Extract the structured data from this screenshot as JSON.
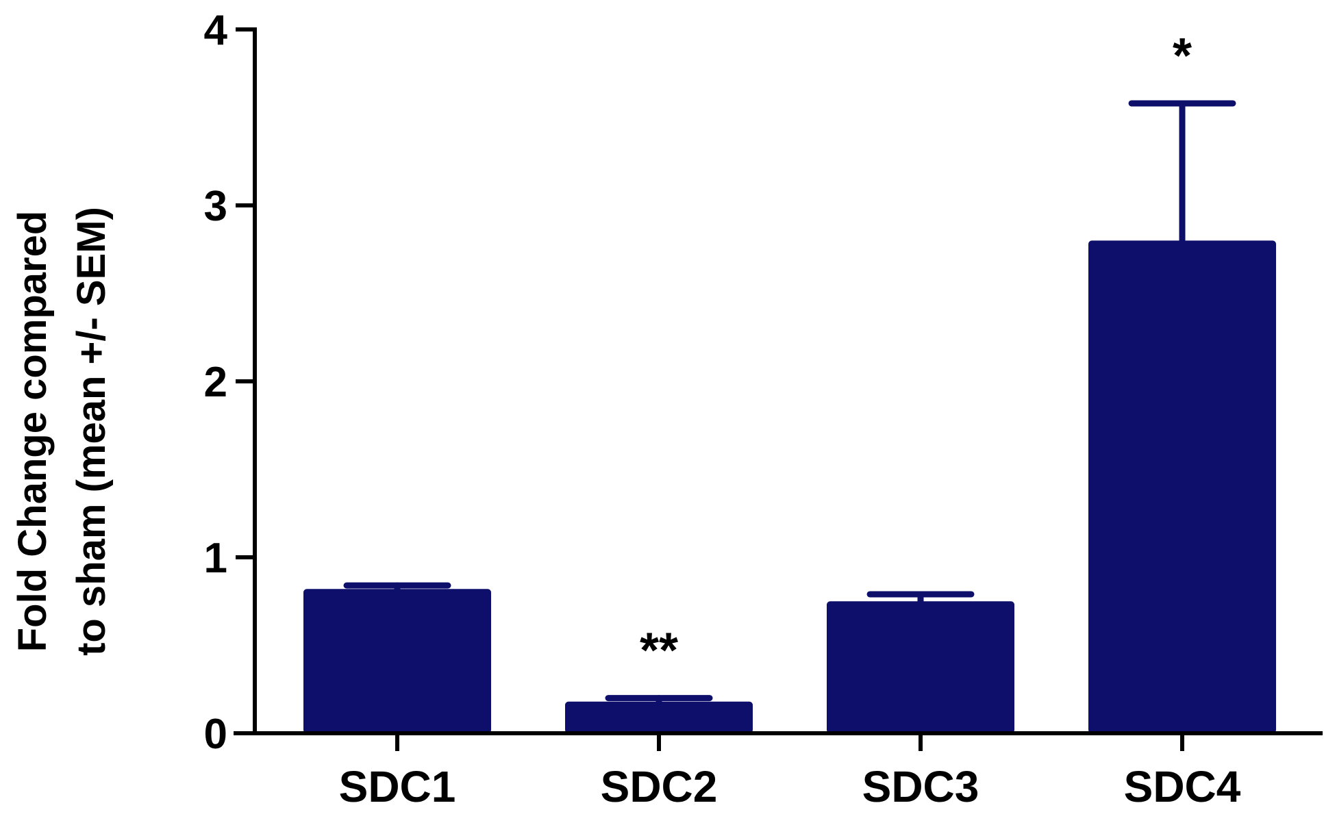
{
  "chart_data": {
    "type": "bar",
    "categories": [
      "SDC1",
      "SDC2",
      "SDC3",
      "SDC4"
    ],
    "values": [
      0.82,
      0.18,
      0.75,
      2.8
    ],
    "error_sem": [
      0.02,
      0.02,
      0.04,
      0.78
    ],
    "annotations": [
      "",
      "**",
      "",
      "*"
    ],
    "title": "",
    "xlabel": "",
    "ylabel_lines": [
      "Fold Change compared",
      "to sham (mean +/- SEM)"
    ],
    "ylim": [
      0,
      4
    ],
    "yticks": [
      "0",
      "1",
      "2",
      "3",
      "4"
    ],
    "grid": false,
    "legend": "none",
    "colors": {
      "bar": "#0d0f6b",
      "axis": "#000000"
    }
  }
}
